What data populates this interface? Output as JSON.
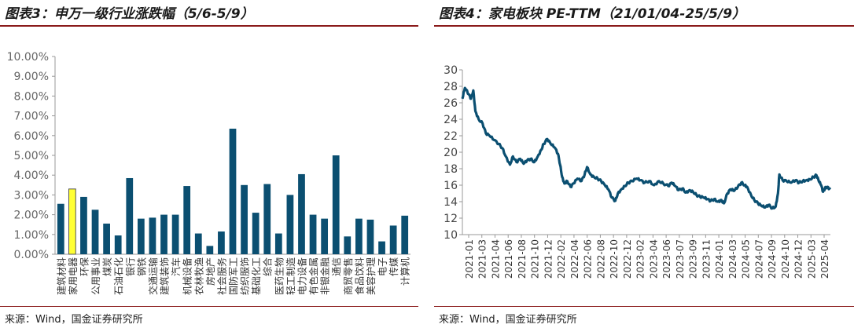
{
  "left_panel": {
    "title": "图表3：申万一级行业涨跌幅（5/6-5/9）",
    "source": "来源：Wind，国金证券研究所"
  },
  "right_panel": {
    "title": "图表4：家电板块 PE-TTM（21/01/04-25/5/9）",
    "source": "来源：Wind，国金证券研究所"
  },
  "colors": {
    "bar": "#0b4f71",
    "highlight": "#ffff33",
    "line": "#0b4f71",
    "rule": "#8a1a1a",
    "axis": "#999999"
  },
  "chart_data": [
    {
      "type": "bar",
      "categories": [
        "建筑材料",
        "家用电器",
        "环保",
        "公用事业",
        "煤炭",
        "石油石化",
        "银行",
        "钢铁",
        "交通运输",
        "建筑装饰",
        "汽车",
        "机械设备",
        "农林牧渔",
        "房地产",
        "社会服务",
        "国防军工",
        "纺织服饰",
        "基础化工",
        "综合",
        "医药生物",
        "轻工制造",
        "电力设备",
        "有色金属",
        "非银金融",
        "通信",
        "商贸零售",
        "食品饮料",
        "美容护理",
        "电子",
        "传媒",
        "计算机"
      ],
      "values": [
        2.55,
        3.3,
        2.9,
        2.25,
        1.55,
        0.95,
        3.85,
        1.8,
        1.85,
        2.0,
        2.0,
        3.45,
        1.05,
        0.42,
        1.15,
        6.35,
        3.5,
        2.1,
        3.55,
        1.05,
        3.0,
        4.05,
        2.0,
        1.8,
        5.0,
        0.9,
        1.8,
        1.75,
        0.65,
        1.45,
        1.95
      ],
      "highlight_index": 1,
      "yticks": [
        "0.00%",
        "1.00%",
        "2.00%",
        "3.00%",
        "4.00%",
        "5.00%",
        "6.00%",
        "7.00%",
        "8.00%",
        "9.00%",
        "10.00%"
      ],
      "ylim": [
        0,
        10
      ],
      "grid": false,
      "legend": "none"
    },
    {
      "type": "line",
      "x_range": [
        "2021-01-04",
        "2025-05-09"
      ],
      "xticks": [
        "2021-01",
        "2021-03",
        "2021-04",
        "2021-06",
        "2021-08",
        "2021-10",
        "2021-12",
        "2022-02",
        "2022-04",
        "2022-06",
        "2022-08",
        "2022-10",
        "2022-12",
        "2023-02",
        "2023-04",
        "2023-06",
        "2023-07",
        "2023-09",
        "2023-11",
        "2024-01",
        "2024-03",
        "2024-05",
        "2024-07",
        "2024-09",
        "2024-10",
        "2024-12",
        "2025-03",
        "2025-04"
      ],
      "yticks": [
        "10",
        "12",
        "14",
        "16",
        "18",
        "20",
        "22",
        "24",
        "26",
        "28",
        "30"
      ],
      "ylim": [
        10,
        30
      ],
      "grid": false,
      "legend": "none",
      "series": [
        {
          "points": [
            [
              "2021-01-04",
              26.5
            ],
            [
              "2021-01-15",
              27.8
            ],
            [
              "2021-02-01",
              27.0
            ],
            [
              "2021-02-10",
              26.5
            ],
            [
              "2021-02-20",
              27.5
            ],
            [
              "2021-03-01",
              25.0
            ],
            [
              "2021-03-15",
              24.0
            ],
            [
              "2021-04-01",
              23.5
            ],
            [
              "2021-04-15",
              22.3
            ],
            [
              "2021-05-01",
              22.0
            ],
            [
              "2021-05-20",
              21.5
            ],
            [
              "2021-06-10",
              21.0
            ],
            [
              "2021-06-25",
              20.5
            ],
            [
              "2021-07-10",
              19.5
            ],
            [
              "2021-07-28",
              18.5
            ],
            [
              "2021-08-10",
              19.5
            ],
            [
              "2021-08-25",
              18.8
            ],
            [
              "2021-09-10",
              19.2
            ],
            [
              "2021-09-25",
              18.6
            ],
            [
              "2021-10-10",
              19.0
            ],
            [
              "2021-10-25",
              19.2
            ],
            [
              "2021-11-10",
              18.8
            ],
            [
              "2021-11-25",
              19.5
            ],
            [
              "2021-12-10",
              20.3
            ],
            [
              "2021-12-20",
              21.0
            ],
            [
              "2022-01-05",
              21.6
            ],
            [
              "2022-01-20",
              21.0
            ],
            [
              "2022-02-05",
              20.6
            ],
            [
              "2022-02-20",
              19.8
            ],
            [
              "2022-03-01",
              18.5
            ],
            [
              "2022-03-10",
              17.0
            ],
            [
              "2022-03-20",
              16.2
            ],
            [
              "2022-04-01",
              16.5
            ],
            [
              "2022-04-15",
              15.8
            ],
            [
              "2022-04-28",
              16.2
            ],
            [
              "2022-05-15",
              16.8
            ],
            [
              "2022-06-01",
              16.5
            ],
            [
              "2022-06-15",
              17.3
            ],
            [
              "2022-06-25",
              18.2
            ],
            [
              "2022-07-10",
              17.3
            ],
            [
              "2022-07-25",
              17.0
            ],
            [
              "2022-08-10",
              16.8
            ],
            [
              "2022-08-25",
              16.5
            ],
            [
              "2022-09-10",
              16.0
            ],
            [
              "2022-09-25",
              15.5
            ],
            [
              "2022-10-10",
              14.5
            ],
            [
              "2022-10-25",
              14.1
            ],
            [
              "2022-11-05",
              15.0
            ],
            [
              "2022-11-20",
              15.5
            ],
            [
              "2022-12-05",
              15.9
            ],
            [
              "2022-12-20",
              16.3
            ],
            [
              "2023-01-05",
              16.5
            ],
            [
              "2023-01-25",
              16.8
            ],
            [
              "2023-02-10",
              16.6
            ],
            [
              "2023-03-01",
              16.3
            ],
            [
              "2023-03-20",
              16.5
            ],
            [
              "2023-04-10",
              16.0
            ],
            [
              "2023-05-01",
              16.5
            ],
            [
              "2023-05-20",
              16.2
            ],
            [
              "2023-06-10",
              15.9
            ],
            [
              "2023-06-25",
              16.3
            ],
            [
              "2023-07-10",
              15.9
            ],
            [
              "2023-07-25",
              15.4
            ],
            [
              "2023-08-10",
              15.6
            ],
            [
              "2023-08-25",
              15.1
            ],
            [
              "2023-09-10",
              15.4
            ],
            [
              "2023-09-25",
              15.2
            ],
            [
              "2023-10-10",
              14.8
            ],
            [
              "2023-10-25",
              14.6
            ],
            [
              "2023-11-10",
              14.5
            ],
            [
              "2023-11-25",
              14.3
            ],
            [
              "2023-12-10",
              14.1
            ],
            [
              "2023-12-25",
              14.3
            ],
            [
              "2024-01-10",
              14.0
            ],
            [
              "2024-01-25",
              14.2
            ],
            [
              "2024-02-05",
              13.8
            ],
            [
              "2024-02-20",
              15.0
            ],
            [
              "2024-03-05",
              15.5
            ],
            [
              "2024-03-20",
              15.3
            ],
            [
              "2024-04-05",
              15.8
            ],
            [
              "2024-04-20",
              16.3
            ],
            [
              "2024-05-05",
              16.0
            ],
            [
              "2024-05-15",
              15.8
            ],
            [
              "2024-06-01",
              14.8
            ],
            [
              "2024-06-15",
              14.2
            ],
            [
              "2024-07-01",
              13.8
            ],
            [
              "2024-07-15",
              13.5
            ],
            [
              "2024-08-01",
              13.3
            ],
            [
              "2024-08-15",
              13.6
            ],
            [
              "2024-09-01",
              13.2
            ],
            [
              "2024-09-15",
              13.4
            ],
            [
              "2024-09-25",
              15.0
            ],
            [
              "2024-10-01",
              17.3
            ],
            [
              "2024-10-15",
              16.6
            ],
            [
              "2024-11-01",
              16.5
            ],
            [
              "2024-11-20",
              16.3
            ],
            [
              "2024-12-10",
              16.6
            ],
            [
              "2024-12-25",
              16.3
            ],
            [
              "2025-01-10",
              16.5
            ],
            [
              "2025-01-25",
              16.6
            ],
            [
              "2025-02-10",
              16.7
            ],
            [
              "2025-02-25",
              17.0
            ],
            [
              "2025-03-10",
              17.2
            ],
            [
              "2025-03-20",
              16.5
            ],
            [
              "2025-03-30",
              16.0
            ],
            [
              "2025-04-07",
              15.2
            ],
            [
              "2025-04-15",
              15.6
            ],
            [
              "2025-04-25",
              15.8
            ],
            [
              "2025-05-09",
              15.5
            ]
          ]
        }
      ]
    }
  ]
}
